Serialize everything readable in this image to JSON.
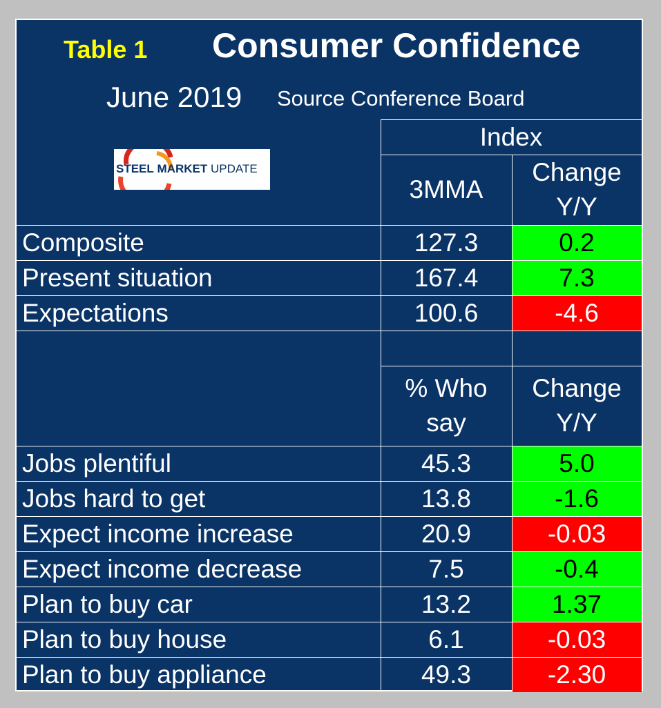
{
  "header": {
    "table_label": "Table 1",
    "title": "Consumer Confidence",
    "date": "June 2019",
    "source": "Source Conference Board",
    "logo": {
      "part1": "STEEL",
      "part2": "MARKET",
      "part3": "UPDATE"
    }
  },
  "section1": {
    "group_header": "Index",
    "col1_header": "3MMA",
    "col2_header_line1": "Change",
    "col2_header_line2": "Y/Y",
    "rows": [
      {
        "label": "Composite",
        "value": "127.3",
        "change": "0.2",
        "status": "green"
      },
      {
        "label": "Present situation",
        "value": "167.4",
        "change": "7.3",
        "status": "green"
      },
      {
        "label": "Expectations",
        "value": "100.6",
        "change": "-4.6",
        "status": "red"
      }
    ]
  },
  "section2": {
    "col1_header_line1": "% Who",
    "col1_header_line2": "say",
    "col2_header_line1": "Change",
    "col2_header_line2": "Y/Y",
    "rows": [
      {
        "label": "Jobs plentiful",
        "value": "45.3",
        "change": "5.0",
        "status": "green"
      },
      {
        "label": "Jobs hard to get",
        "value": "13.8",
        "change": "-1.6",
        "status": "green"
      },
      {
        "label": "Expect income increase",
        "value": "20.9",
        "change": "-0.03",
        "status": "red"
      },
      {
        "label": "Expect income decrease",
        "value": "7.5",
        "change": "-0.4",
        "status": "green"
      },
      {
        "label": "Plan to buy car",
        "value": "13.2",
        "change": "1.37",
        "status": "green"
      },
      {
        "label": "Plan to buy house",
        "value": "6.1",
        "change": "-0.03",
        "status": "red"
      },
      {
        "label": "Plan to buy appliance",
        "value": "49.3",
        "change": "-2.30",
        "status": "red"
      }
    ]
  },
  "colors": {
    "background": "#0a3366",
    "positive": "#00ff00",
    "negative": "#ff0000",
    "label_accent": "#ffff00"
  }
}
